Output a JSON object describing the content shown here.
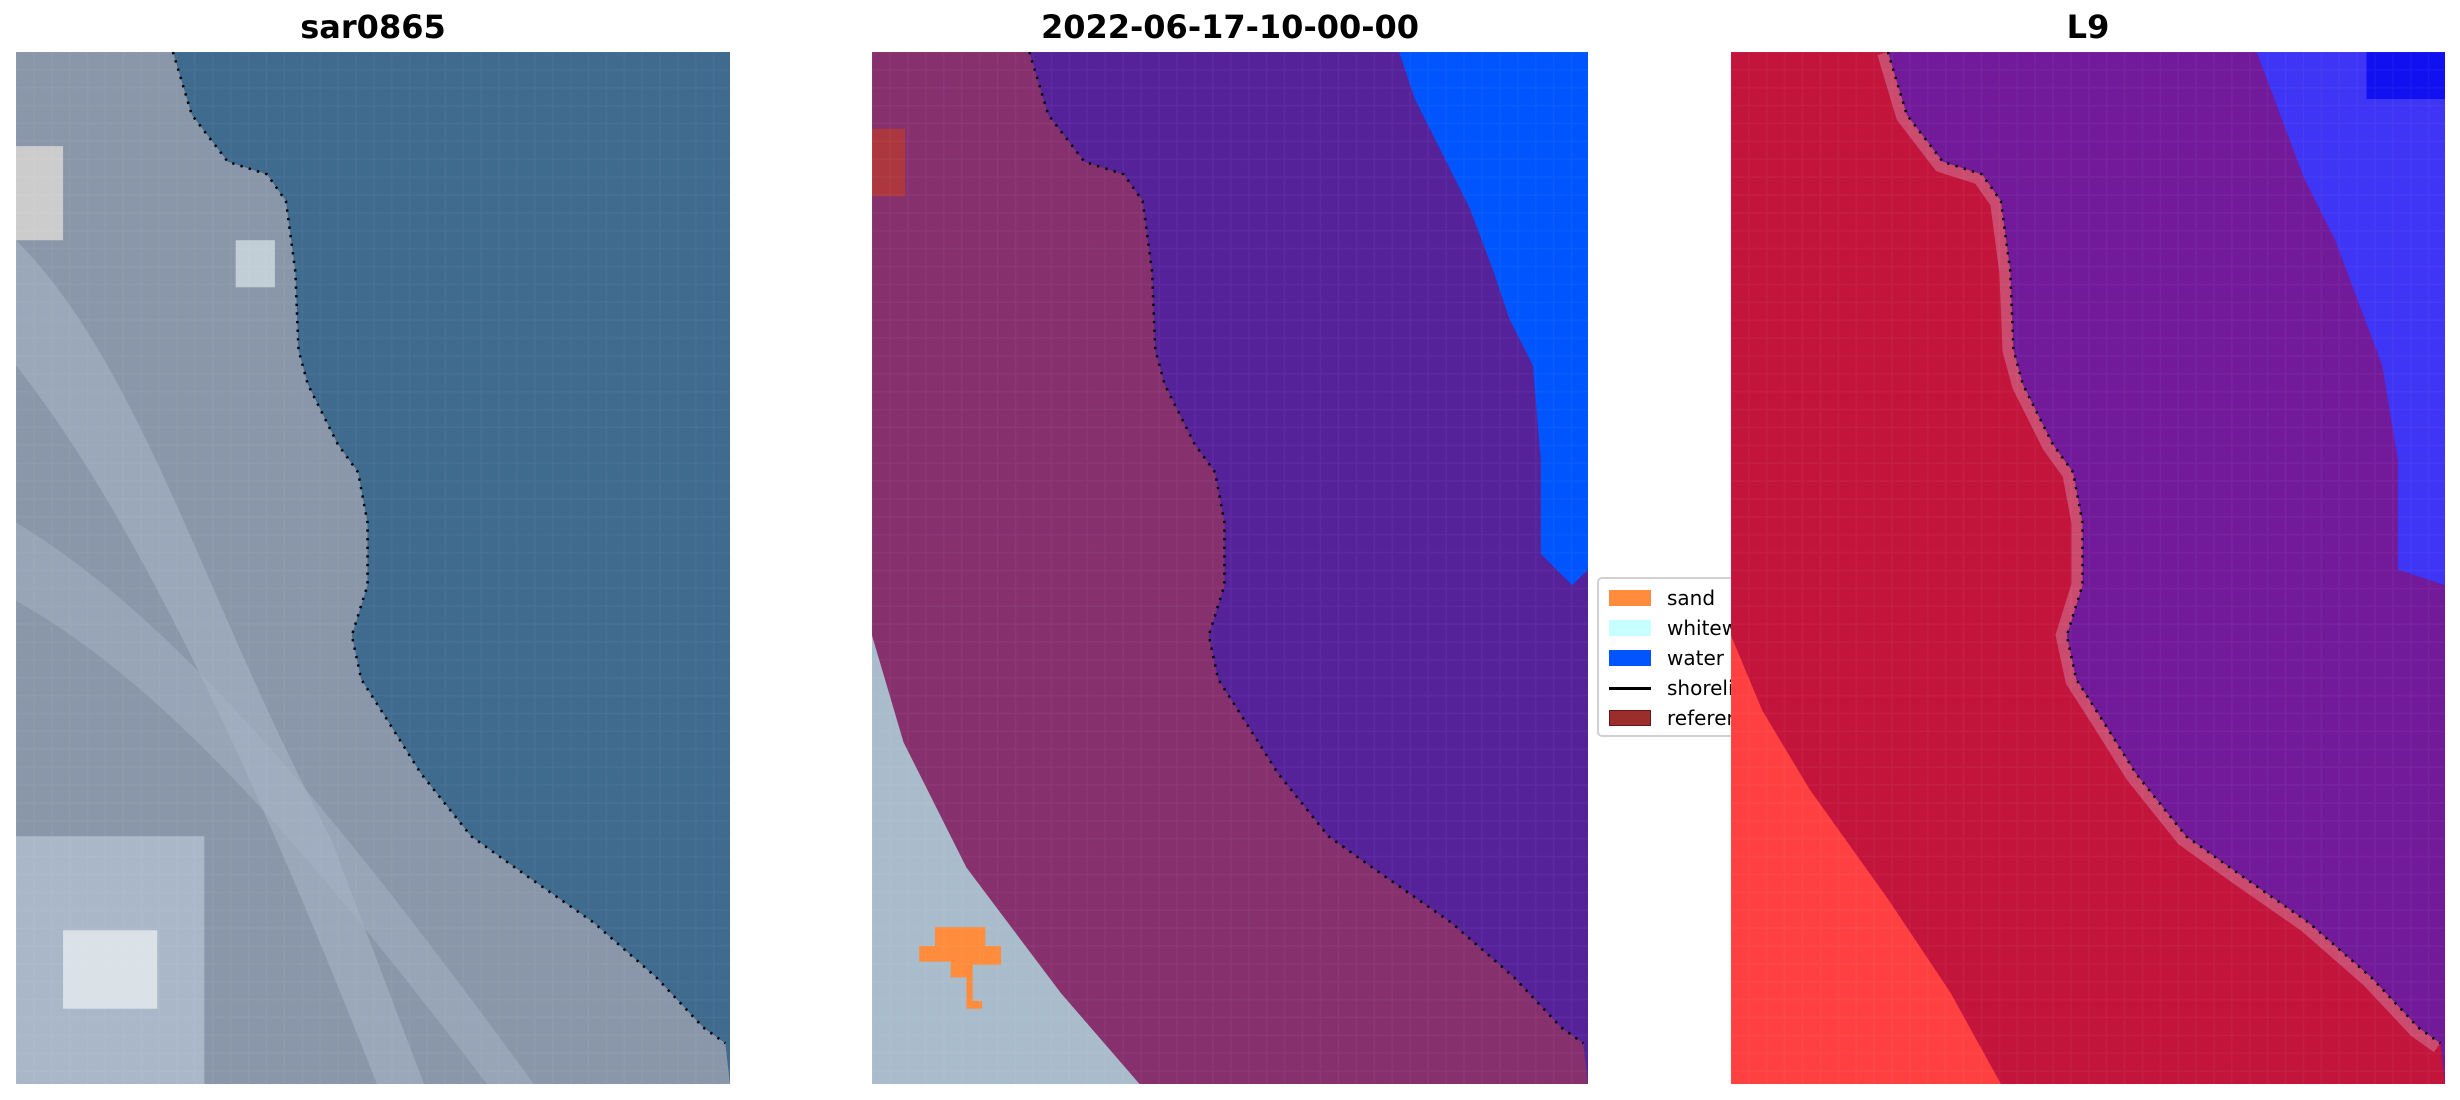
{
  "panels": [
    {
      "title": "sar0865",
      "kind": "rgb"
    },
    {
      "title": "2022-06-17-10-00-00",
      "kind": "classified"
    },
    {
      "title": "L9",
      "kind": "index"
    }
  ],
  "legend": {
    "items": [
      {
        "label": "sand",
        "color": "#ff8c3c",
        "type": "patch"
      },
      {
        "label": "whitewater",
        "color": "#c8ffff",
        "type": "patch"
      },
      {
        "label": "water",
        "color": "#0055ff",
        "type": "patch"
      },
      {
        "label": "shoreline",
        "color": "#000000",
        "type": "line"
      },
      {
        "label": "reference",
        "color": "#9b2d2d",
        "type": "patch"
      }
    ]
  },
  "colors": {
    "land_rgb": "#8a97aa",
    "sea_rgb": "#3f6b8f",
    "land_class": "#86306e",
    "water_class": "#55229a",
    "water_blue": "#0055ff",
    "land_index": "#c3143c",
    "water_index": "#721a9a",
    "index_bright": "#ff4040",
    "index_blue": "#3838ff"
  }
}
